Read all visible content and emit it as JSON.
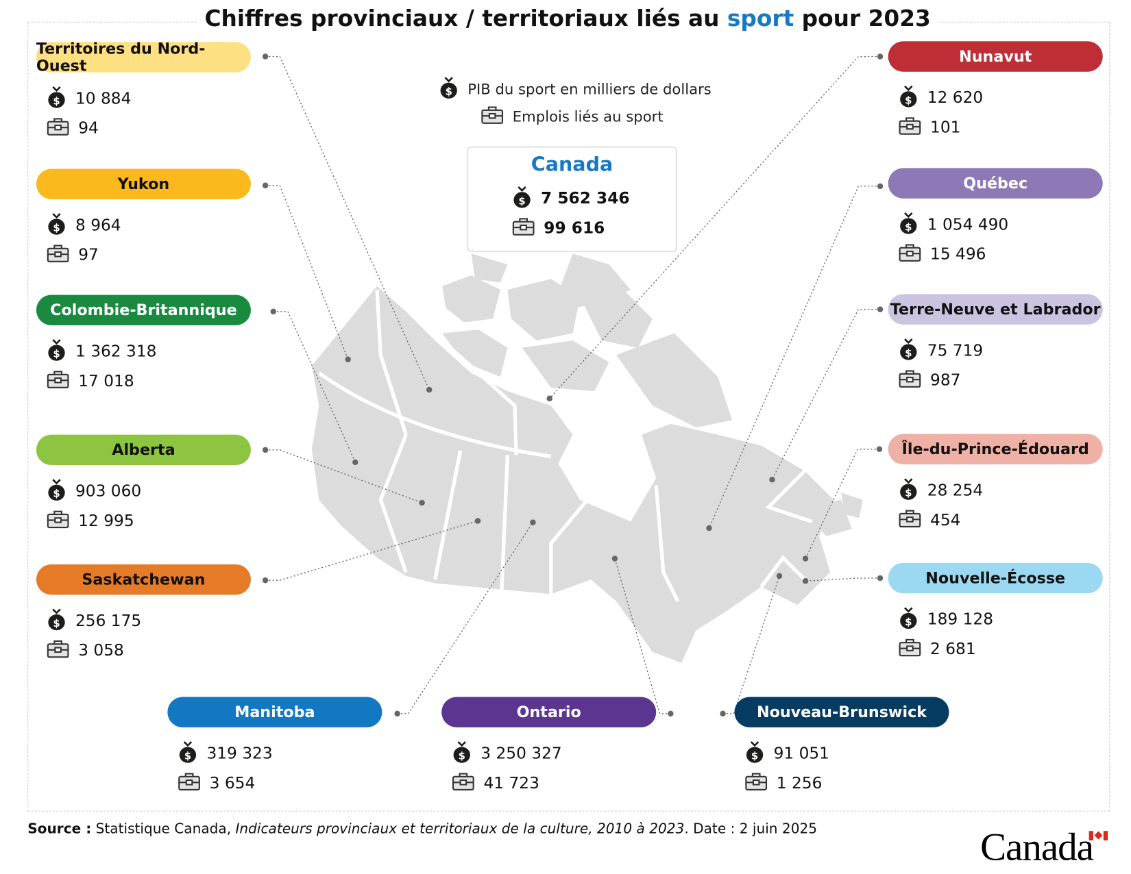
{
  "title": {
    "before": "Chiffres provinciaux / territoriaux liés au ",
    "highlight": "sport",
    "after": " pour 2023"
  },
  "legend": {
    "gdp": "PIB du sport en milliers de dollars",
    "jobs": "Emplois liés au sport"
  },
  "canada": {
    "name": "Canada",
    "gdp": "7 562 346",
    "jobs": "99 616"
  },
  "regions": [
    {
      "name": "Territoires du Nord-Ouest",
      "gdp": "10 884",
      "jobs": "94",
      "color": "#fde082"
    },
    {
      "name": "Yukon",
      "gdp": "8 964",
      "jobs": "97",
      "color": "#fbb91d"
    },
    {
      "name": "Colombie-Britannique",
      "gdp": "1 362 318",
      "jobs": "17 018",
      "color": "#1a8a40"
    },
    {
      "name": "Alberta",
      "gdp": "903 060",
      "jobs": "12 995",
      "color": "#8dc540"
    },
    {
      "name": "Saskatchewan",
      "gdp": "256 175",
      "jobs": "3 058",
      "color": "#e57a27"
    },
    {
      "name": "Nunavut",
      "gdp": "12 620",
      "jobs": "101",
      "color": "#bf2e37"
    },
    {
      "name": "Québec",
      "gdp": "1 054 490",
      "jobs": "15 496",
      "color": "#8d79b5"
    },
    {
      "name": "Terre-Neuve et Labrador",
      "gdp": "75 719",
      "jobs": "987",
      "color": "#cbc3e0"
    },
    {
      "name": "Île-du-Prince-Édouard",
      "gdp": "28 254",
      "jobs": "454",
      "color": "#efb0a5"
    },
    {
      "name": "Nouvelle-Écosse",
      "gdp": "189 128",
      "jobs": "2 681",
      "color": "#9bd8f2"
    },
    {
      "name": "Manitoba",
      "gdp": "319 323",
      "jobs": "3 654",
      "color": "#1178c1"
    },
    {
      "name": "Ontario",
      "gdp": "3 250 327",
      "jobs": "41 723",
      "color": "#5b3590"
    },
    {
      "name": "Nouveau-Brunswick",
      "gdp": "91 051",
      "jobs": "1 256",
      "color": "#063c62"
    }
  ],
  "footer": {
    "source_label": "Source :",
    "source_org": " Statistique Canada, ",
    "source_title": "Indicateurs provinciaux et territoriaux de la culture, 2010 à 2023",
    "source_date": ". Date : 2 juin 2025",
    "logo": "Canada"
  }
}
